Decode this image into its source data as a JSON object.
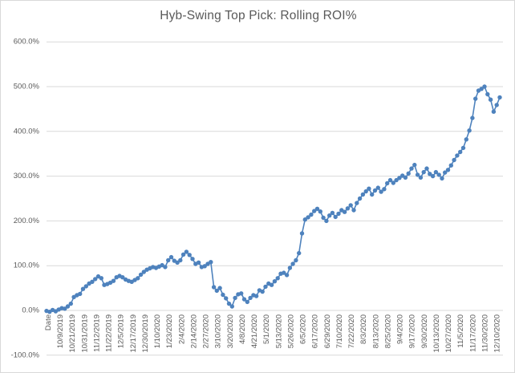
{
  "chart_data": {
    "type": "scatter",
    "title": "Hyb-Swing Top Pick: Rolling ROI%",
    "xlabel": "",
    "ylabel": "",
    "ylim": [
      -100,
      600
    ],
    "y_gridline_step_pct": 100,
    "grid": true,
    "legend_position": "none",
    "y_tick_labels": [
      "600.0%",
      "500.0%",
      "400.0%",
      "300.0%",
      "200.0%",
      "100.0%",
      "0.0%",
      "-100.0%"
    ],
    "x_tick_labels": [
      "Date",
      "10/9/2019",
      "10/21/2019",
      "10/31/2019",
      "11/12/2019",
      "11/22/2019",
      "12/5/2019",
      "12/17/2019",
      "12/30/2019",
      "1/10/2020",
      "1/23/2020",
      "2/4/2020",
      "2/14/2020",
      "2/27/2020",
      "3/10/2020",
      "3/20/2020",
      "4/8/2020",
      "4/21/2020",
      "5/1/2020",
      "5/13/2020",
      "5/26/2020",
      "6/5/2020",
      "6/17/2020",
      "6/29/2020",
      "7/10/2020",
      "7/22/2020",
      "8/3/2020",
      "8/13/2020",
      "8/25/2020",
      "9/4/2020",
      "9/17/2020",
      "9/30/2020",
      "10/13/2020",
      "10/27/2020",
      "11/5/2020",
      "11/17/2020",
      "11/30/2020",
      "12/10/2020"
    ],
    "series": [
      {
        "name": "Rolling ROI%",
        "style": "line-with-round-markers",
        "values_pct": [
          -1,
          -3,
          1,
          -2,
          2,
          5,
          4,
          9,
          15,
          30,
          34,
          37,
          48,
          54,
          60,
          64,
          70,
          76,
          72,
          57,
          59,
          62,
          66,
          74,
          77,
          74,
          69,
          66,
          64,
          68,
          72,
          80,
          86,
          91,
          94,
          97,
          95,
          98,
          101,
          97,
          112,
          119,
          111,
          107,
          112,
          125,
          131,
          124,
          115,
          104,
          107,
          97,
          99,
          104,
          108,
          52,
          44,
          50,
          35,
          27,
          15,
          9,
          28,
          36,
          38,
          25,
          19,
          28,
          34,
          32,
          45,
          42,
          53,
          60,
          57,
          65,
          72,
          82,
          84,
          79,
          95,
          104,
          112,
          128,
          172,
          203,
          208,
          214,
          222,
          227,
          221,
          207,
          200,
          212,
          218,
          209,
          216,
          224,
          220,
          228,
          235,
          224,
          240,
          250,
          259,
          266,
          272,
          259,
          268,
          274,
          265,
          271,
          284,
          291,
          285,
          291,
          296,
          301,
          297,
          306,
          317,
          325,
          303,
          297,
          309,
          317,
          305,
          300,
          309,
          303,
          295,
          308,
          314,
          324,
          336,
          346,
          354,
          363,
          382,
          402,
          430,
          473,
          491,
          495,
          500,
          483,
          471,
          444,
          459,
          476
        ]
      }
    ]
  },
  "colors": {
    "marker": "#4e82bd",
    "gridline": "#d9d9d9",
    "axis_text": "#595959",
    "title_text": "#595959",
    "frame_border": "#d9d9d9",
    "background": "#ffffff"
  }
}
